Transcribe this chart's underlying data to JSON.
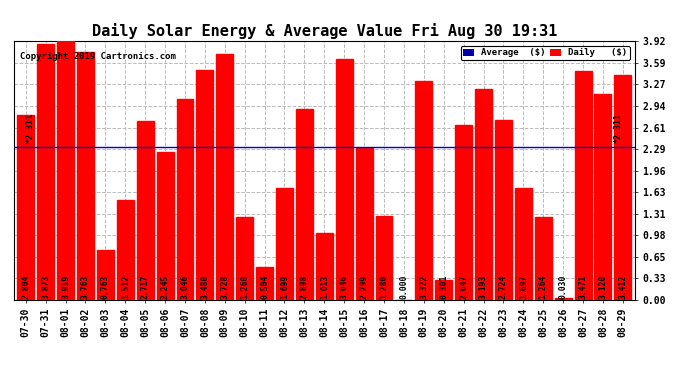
{
  "title": "Daily Solar Energy & Average Value Fri Aug 30 19:31",
  "copyright": "Copyright 2019 Cartronics.com",
  "categories": [
    "07-30",
    "07-31",
    "08-01",
    "08-02",
    "08-03",
    "08-04",
    "08-05",
    "08-06",
    "08-07",
    "08-08",
    "08-09",
    "08-10",
    "08-11",
    "08-12",
    "08-13",
    "08-14",
    "08-15",
    "08-16",
    "08-17",
    "08-18",
    "08-19",
    "08-20",
    "08-21",
    "08-22",
    "08-23",
    "08-24",
    "08-25",
    "08-26",
    "08-27",
    "08-28",
    "08-29"
  ],
  "values": [
    2.804,
    3.873,
    3.919,
    3.763,
    0.763,
    1.512,
    2.717,
    2.245,
    3.046,
    3.48,
    3.728,
    1.26,
    0.504,
    1.699,
    2.898,
    1.013,
    3.646,
    2.299,
    1.28,
    0.0,
    3.322,
    0.301,
    2.647,
    3.193,
    2.724,
    1.697,
    1.264,
    0.03,
    3.471,
    3.12,
    3.412
  ],
  "average": 2.311,
  "bar_color": "#ff0000",
  "average_line_color": "#0000cc",
  "background_color": "#ffffff",
  "grid_color": "#bbbbbb",
  "ylim": [
    0,
    3.92
  ],
  "yticks": [
    0.0,
    0.33,
    0.65,
    0.98,
    1.31,
    1.63,
    1.96,
    2.29,
    2.61,
    2.94,
    3.27,
    3.59,
    3.92
  ],
  "title_fontsize": 11,
  "bar_label_fontsize": 5.8,
  "tick_fontsize": 7,
  "legend_avg_color": "#0000aa",
  "legend_daily_color": "#ff0000",
  "avg_label": "Average  ($)",
  "daily_label": "Daily   ($)"
}
